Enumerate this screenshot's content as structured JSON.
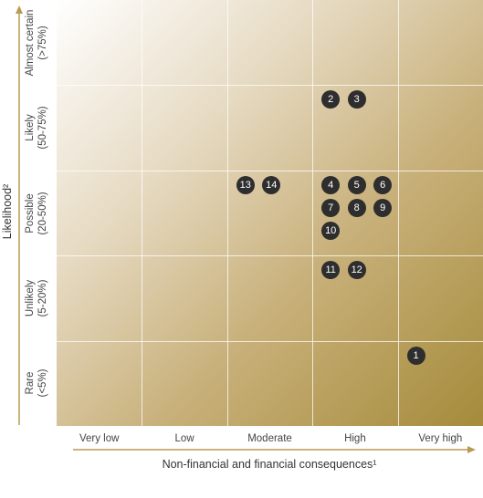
{
  "chart_data": {
    "type": "risk-matrix",
    "title": "",
    "xlabel": "Non-financial and financial consequences¹",
    "ylabel": "Likelihood²",
    "x_categories": [
      "Very low",
      "Low",
      "Moderate",
      "High",
      "Very high"
    ],
    "y_categories": [
      {
        "line1": "Almost certain",
        "line2": "(>75%)"
      },
      {
        "line1": "Likely",
        "line2": "(50-75%)"
      },
      {
        "line1": "Possible",
        "line2": "(20-50%)"
      },
      {
        "line1": "Unlikely",
        "line2": "(5-20%)"
      },
      {
        "line1": "Rare",
        "line2": "(<5%)"
      }
    ],
    "risks": [
      {
        "id": "1",
        "consequence": "Very high",
        "likelihood": "Rare"
      },
      {
        "id": "2",
        "consequence": "High",
        "likelihood": "Likely"
      },
      {
        "id": "3",
        "consequence": "High",
        "likelihood": "Likely"
      },
      {
        "id": "4",
        "consequence": "High",
        "likelihood": "Possible"
      },
      {
        "id": "5",
        "consequence": "High",
        "likelihood": "Possible"
      },
      {
        "id": "6",
        "consequence": "High",
        "likelihood": "Possible"
      },
      {
        "id": "7",
        "consequence": "High",
        "likelihood": "Possible"
      },
      {
        "id": "8",
        "consequence": "High",
        "likelihood": "Possible"
      },
      {
        "id": "9",
        "consequence": "High",
        "likelihood": "Possible"
      },
      {
        "id": "10",
        "consequence": "High",
        "likelihood": "Possible"
      },
      {
        "id": "11",
        "consequence": "High",
        "likelihood": "Unlikely"
      },
      {
        "id": "12",
        "consequence": "High",
        "likelihood": "Unlikely"
      },
      {
        "id": "13",
        "consequence": "Moderate",
        "likelihood": "Possible"
      },
      {
        "id": "14",
        "consequence": "Moderate",
        "likelihood": "Possible"
      }
    ],
    "colors": {
      "gradient_dark": "#a58b3a",
      "gradient_light": "#ffffff",
      "marker": "#2e2e2e",
      "axis_arrow": "#b89a52"
    }
  }
}
